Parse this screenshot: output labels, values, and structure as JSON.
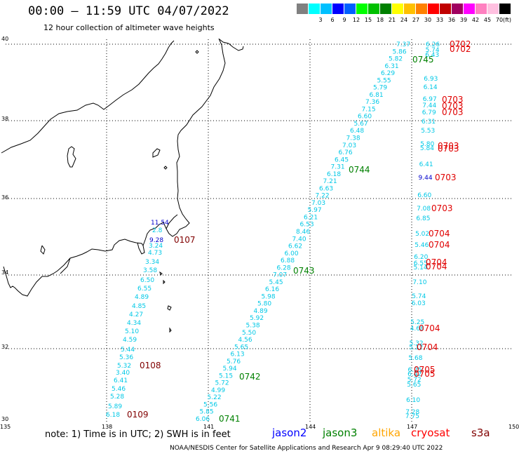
{
  "header": {
    "title": "00:00 – 11:59 UTC 04/07/2022",
    "subtitle": "12 hour collection of altimeter wave heights"
  },
  "legend": {
    "unit": "(ft)",
    "bins": [
      {
        "label": "",
        "color": "#808080"
      },
      {
        "label": "3",
        "color": "#00ffff"
      },
      {
        "label": "6",
        "color": "#00c0ff"
      },
      {
        "label": "9",
        "color": "#0000ff"
      },
      {
        "label": "12",
        "color": "#0060ff"
      },
      {
        "label": "15",
        "color": "#00ff00"
      },
      {
        "label": "18",
        "color": "#00c000"
      },
      {
        "label": "21",
        "color": "#008000"
      },
      {
        "label": "24",
        "color": "#ffff00"
      },
      {
        "label": "27",
        "color": "#ffc000"
      },
      {
        "label": "30",
        "color": "#ff8000"
      },
      {
        "label": "33",
        "color": "#ff0000"
      },
      {
        "label": "36",
        "color": "#c00000"
      },
      {
        "label": "39",
        "color": "#a00060"
      },
      {
        "label": "42",
        "color": "#ff00ff"
      },
      {
        "label": "45",
        "color": "#ff80c0"
      },
      {
        "label": "70",
        "color": "#ffc0e0"
      },
      {
        "label": "",
        "color": "#000000"
      }
    ]
  },
  "axes": {
    "lat_labels": [
      "40",
      "38",
      "36",
      "34",
      "32",
      "30"
    ],
    "lon_labels": [
      "135",
      "138",
      "141",
      "144",
      "147",
      "150"
    ]
  },
  "colors": {
    "track": "#00c8e6",
    "track_blue": "#0000cc",
    "time_red": "#e00000",
    "time_green": "#008000",
    "time_maroon": "#800000",
    "grid": "#000000",
    "coast": "#000000"
  },
  "tracks": {
    "west": {
      "time_labels": [
        {
          "text": "0107",
          "color": "maroon"
        },
        {
          "text": "0108",
          "color": "maroon"
        },
        {
          "text": "0109",
          "color": "maroon"
        }
      ],
      "values": [
        {
          "text": "11.54",
          "blue": true
        },
        {
          "text": "2.8",
          "blue": false
        },
        {
          "text": "9.28",
          "blue": true
        },
        {
          "text": "3.24",
          "blue": false
        },
        {
          "text": "4.73",
          "blue": false
        },
        {
          "text": "3.34",
          "blue": false
        },
        {
          "text": "3.58",
          "blue": false
        },
        {
          "text": "6.50",
          "blue": false
        },
        {
          "text": "6.55",
          "blue": false
        },
        {
          "text": "4.89",
          "blue": false
        },
        {
          "text": "4.85",
          "blue": false
        },
        {
          "text": "4.27",
          "blue": false
        },
        {
          "text": "4.34",
          "blue": false
        },
        {
          "text": "5.10",
          "blue": false
        },
        {
          "text": "4.59",
          "blue": false
        },
        {
          "text": "5.44",
          "blue": false
        },
        {
          "text": "5.36",
          "blue": false
        },
        {
          "text": "5.32",
          "blue": false
        },
        {
          "text": "3.40",
          "blue": false
        },
        {
          "text": "6.41",
          "blue": false
        },
        {
          "text": "5.46",
          "blue": false
        },
        {
          "text": "5.28",
          "blue": false
        },
        {
          "text": "5.89",
          "blue": false
        },
        {
          "text": "6.18",
          "blue": false
        }
      ]
    },
    "middle": {
      "time_labels": [
        {
          "text": "0745",
          "color": "green"
        },
        {
          "text": "0744",
          "color": "green"
        },
        {
          "text": "0743",
          "color": "green"
        },
        {
          "text": "0742",
          "color": "green"
        },
        {
          "text": "0741",
          "color": "green"
        }
      ],
      "values": [
        "7.37",
        "5.86",
        "5.82",
        "6.31",
        "6.29",
        "5.55",
        "5.79",
        "6.81",
        "7.36",
        "7.15",
        "6.60",
        "5.67",
        "6.48",
        "7.38",
        "7.03",
        "6.76",
        "6.45",
        "7.31",
        "6.18",
        "7.21",
        "6.63",
        "7.22",
        "7.03",
        "5.97",
        "6.21",
        "6.53",
        "8.46",
        "7.40",
        "6.62",
        "6.00",
        "6.88",
        "6.28",
        "7.07",
        "5.45",
        "6.16",
        "5.98",
        "5.80",
        "4.89",
        "5.92",
        "5.38",
        "5.50",
        "4.56",
        "5.65",
        "6.13",
        "5.76",
        "5.94",
        "5.15",
        "5.72",
        "4.99",
        "5.22",
        "5.56",
        "5.85",
        "6.06"
      ]
    },
    "east": {
      "time_labels": [
        {
          "text": "0702",
          "color": "red"
        },
        {
          "text": "0702",
          "color": "red"
        },
        {
          "text": "0703",
          "color": "red"
        },
        {
          "text": "0703",
          "color": "red"
        },
        {
          "text": "0703",
          "color": "red"
        },
        {
          "text": "0703",
          "color": "red"
        },
        {
          "text": "0703",
          "color": "red"
        },
        {
          "text": "0703",
          "color": "red"
        },
        {
          "text": "0703",
          "color": "red"
        },
        {
          "text": "0704",
          "color": "red"
        },
        {
          "text": "0704",
          "color": "red"
        },
        {
          "text": "0704",
          "color": "red"
        },
        {
          "text": "0704",
          "color": "red"
        },
        {
          "text": "0704",
          "color": "red"
        },
        {
          "text": "0704",
          "color": "red"
        },
        {
          "text": "0705",
          "color": "red"
        },
        {
          "text": "0705",
          "color": "red"
        }
      ],
      "values": [
        {
          "text": "6.26",
          "blue": false
        },
        {
          "text": "5.74",
          "blue": false
        },
        {
          "text": "6.43",
          "blue": false
        },
        {
          "text": "6.93",
          "blue": false
        },
        {
          "text": "6.14",
          "blue": false
        },
        {
          "text": "6.97",
          "blue": false
        },
        {
          "text": "7.44",
          "blue": false
        },
        {
          "text": "6.79",
          "blue": false
        },
        {
          "text": "6.31",
          "blue": false
        },
        {
          "text": "5.53",
          "blue": false
        },
        {
          "text": "5.80",
          "blue": false
        },
        {
          "text": "5.84",
          "blue": false
        },
        {
          "text": "6.41",
          "blue": false
        },
        {
          "text": "9.44",
          "blue": true
        },
        {
          "text": "6.60",
          "blue": false
        },
        {
          "text": "7.08",
          "blue": false
        },
        {
          "text": "6.85",
          "blue": false
        },
        {
          "text": "5.02",
          "blue": false
        },
        {
          "text": "5.46",
          "blue": false
        },
        {
          "text": "6.20",
          "blue": false
        },
        {
          "text": "6.55",
          "blue": false
        },
        {
          "text": "5.14",
          "blue": false
        },
        {
          "text": "7.10",
          "blue": false
        },
        {
          "text": "5.74",
          "blue": false
        },
        {
          "text": "6.03",
          "blue": false
        },
        {
          "text": "5.25",
          "blue": false
        },
        {
          "text": "4.68",
          "blue": false
        },
        {
          "text": "5.32",
          "blue": false
        },
        {
          "text": "5.12",
          "blue": false
        },
        {
          "text": "5.68",
          "blue": false
        },
        {
          "text": "6.25",
          "blue": false
        },
        {
          "text": "6.42",
          "blue": false
        },
        {
          "text": "5.72",
          "blue": false
        },
        {
          "text": "5.65",
          "blue": false
        },
        {
          "text": "6.10",
          "blue": false
        },
        {
          "text": "7.28",
          "blue": false
        },
        {
          "text": "7.75",
          "blue": false
        }
      ]
    }
  },
  "footer": {
    "note": "note:  1) Time is in UTC; 2) SWH is in feet",
    "satellites": [
      {
        "name": "jason2",
        "color": "#0000ff"
      },
      {
        "name": "jason3",
        "color": "#008000"
      },
      {
        "name": "altika",
        "color": "#ffa500"
      },
      {
        "name": "cryosat",
        "color": "#ff0000"
      },
      {
        "name": "s3a",
        "color": "#800000"
      }
    ],
    "credit": "NOAA/NESDIS Center for Satellite Applications and Research    Apr  9 08:29:40 UTC 2022"
  }
}
